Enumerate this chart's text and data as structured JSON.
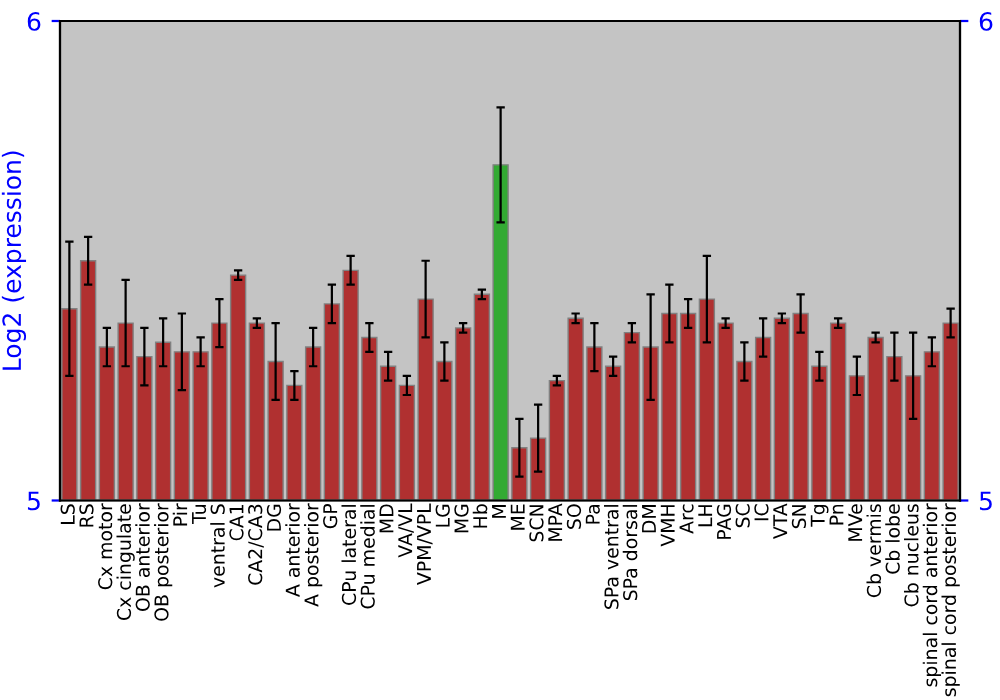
{
  "chart_data": {
    "type": "bar",
    "ylabel": "Log2 (expression)",
    "categories": [
      "LS",
      "RS",
      "Cx motor",
      "Cx cingulate",
      "OB anterior",
      "OB posterior",
      "Pir",
      "Tu",
      "ventral S",
      "CA1",
      "CA2/CA3",
      "DG",
      "A anterior",
      "A posterior",
      "GP",
      "CPu lateral",
      "CPu medial",
      "MD",
      "VA/VL",
      "VPM/VPL",
      "LG",
      "MG",
      "Hb",
      "M",
      "ME",
      "SCN",
      "MPA",
      "SO",
      "Pa",
      "SPa ventral",
      "SPa dorsal",
      "DM",
      "VMH",
      "Arc",
      "LH",
      "PAG",
      "SC",
      "IC",
      "VTA",
      "SN",
      "Tg",
      "Pn",
      "MVe",
      "Cb vermis",
      "Cb lobe",
      "Cb nucleus",
      "spinal cord anterior",
      "spinal cord posterior"
    ],
    "values": [
      5.4,
      5.5,
      5.32,
      5.37,
      5.3,
      5.33,
      5.31,
      5.31,
      5.37,
      5.47,
      5.37,
      5.29,
      5.24,
      5.32,
      5.41,
      5.48,
      5.34,
      5.28,
      5.24,
      5.42,
      5.29,
      5.36,
      5.43,
      5.7,
      5.11,
      5.13,
      5.25,
      5.38,
      5.32,
      5.28,
      5.35,
      5.32,
      5.39,
      5.39,
      5.42,
      5.37,
      5.29,
      5.34,
      5.38,
      5.39,
      5.28,
      5.37,
      5.26,
      5.34,
      5.3,
      5.26,
      5.31,
      5.37
    ],
    "errors": [
      0.14,
      0.05,
      0.04,
      0.09,
      0.06,
      0.05,
      0.08,
      0.03,
      0.05,
      0.01,
      0.01,
      0.08,
      0.03,
      0.04,
      0.04,
      0.03,
      0.03,
      0.03,
      0.02,
      0.08,
      0.04,
      0.01,
      0.01,
      0.12,
      0.06,
      0.07,
      0.01,
      0.01,
      0.05,
      0.02,
      0.02,
      0.11,
      0.06,
      0.03,
      0.09,
      0.01,
      0.04,
      0.04,
      0.01,
      0.04,
      0.03,
      0.01,
      0.04,
      0.01,
      0.05,
      0.09,
      0.03,
      0.03
    ],
    "colors": [
      "#b03030",
      "#b03030",
      "#b03030",
      "#b03030",
      "#b03030",
      "#b03030",
      "#b03030",
      "#b03030",
      "#b03030",
      "#b03030",
      "#b03030",
      "#b03030",
      "#b03030",
      "#b03030",
      "#b03030",
      "#b03030",
      "#b03030",
      "#b03030",
      "#b03030",
      "#b03030",
      "#b03030",
      "#b03030",
      "#b03030",
      "#33aa33",
      "#b03030",
      "#b03030",
      "#b03030",
      "#b03030",
      "#b03030",
      "#b03030",
      "#b03030",
      "#b03030",
      "#b03030",
      "#b03030",
      "#b03030",
      "#b03030",
      "#b03030",
      "#b03030",
      "#b03030",
      "#b03030",
      "#b03030",
      "#b03030",
      "#b03030",
      "#b03030",
      "#b03030",
      "#b03030",
      "#b03030",
      "#b03030"
    ],
    "ylim": [
      5,
      6
    ],
    "yticks": [
      5,
      6
    ],
    "y2lim": [
      5,
      6
    ],
    "y2ticks": [
      5,
      6
    ],
    "grid": false
  }
}
